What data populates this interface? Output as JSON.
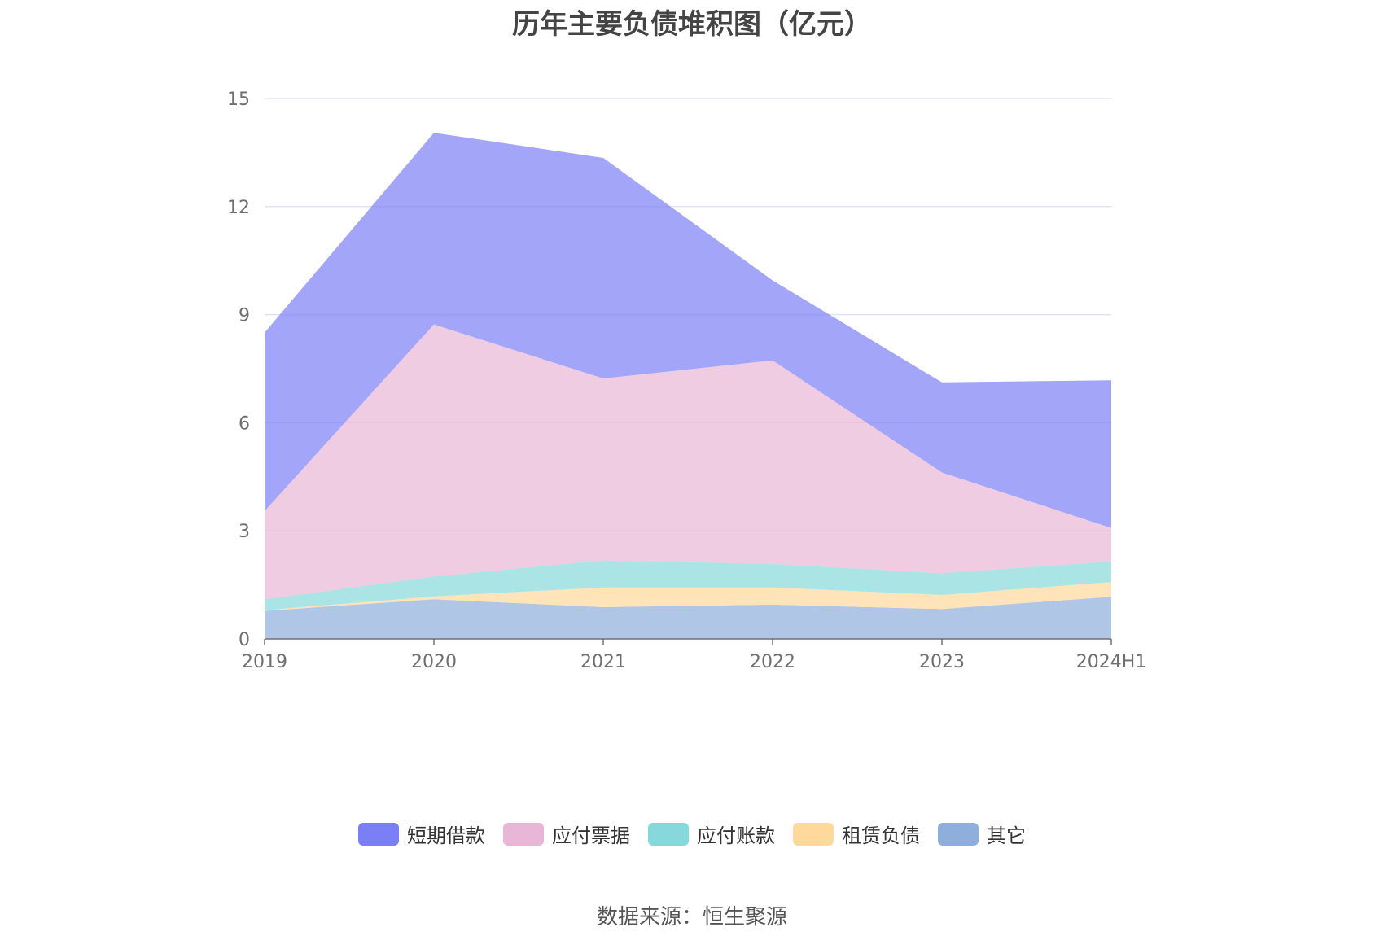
{
  "chart_data": {
    "type": "area",
    "stacked": true,
    "title": "历年主要负债堆积图（亿元）",
    "categories": [
      "2019",
      "2020",
      "2021",
      "2022",
      "2023",
      "2024H1"
    ],
    "ylim": [
      0,
      15
    ],
    "yticks": [
      "0",
      "3",
      "6",
      "9",
      "12",
      "15"
    ],
    "grid": true,
    "legend_position": "bottom",
    "series": [
      {
        "name": "其它",
        "color": "#8eaedc",
        "values": [
          0.78,
          1.1,
          0.88,
          0.95,
          0.83,
          1.17
        ]
      },
      {
        "name": "租赁负债",
        "color": "#ffd99b",
        "values": [
          0.02,
          0.08,
          0.55,
          0.48,
          0.39,
          0.41
        ]
      },
      {
        "name": "应付账款",
        "color": "#86d8da",
        "values": [
          0.3,
          0.55,
          0.75,
          0.65,
          0.6,
          0.57
        ]
      },
      {
        "name": "应付票据",
        "color": "#e8b6d6",
        "values": [
          2.45,
          7.0,
          5.05,
          5.65,
          2.8,
          0.93
        ]
      },
      {
        "name": "短期借款",
        "color": "#7b7ff5",
        "values": [
          4.95,
          5.32,
          6.12,
          2.22,
          2.5,
          4.1
        ]
      }
    ]
  },
  "legend": [
    {
      "label": "短期借款",
      "color": "#7b7ff5"
    },
    {
      "label": "应付票据",
      "color": "#e8b6d6"
    },
    {
      "label": "应付账款",
      "color": "#86d8da"
    },
    {
      "label": "租赁负债",
      "color": "#ffd99b"
    },
    {
      "label": "其它",
      "color": "#8eaedc"
    }
  ],
  "source": "数据来源：恒生聚源"
}
